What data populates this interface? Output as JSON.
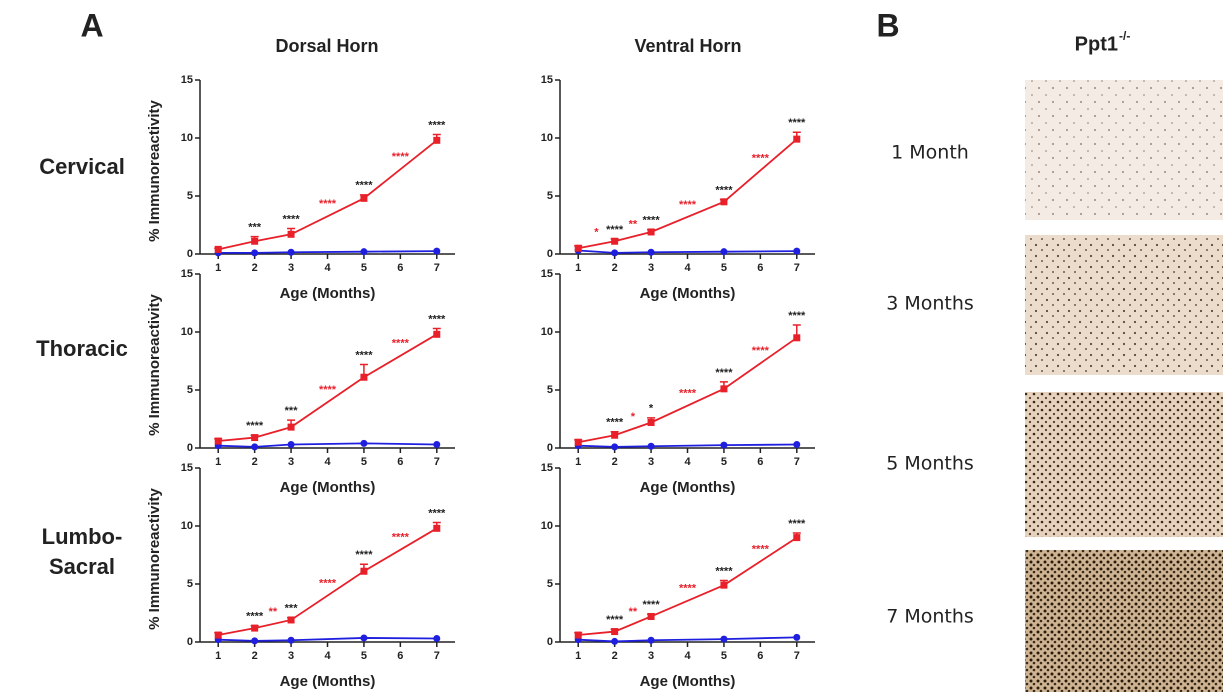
{
  "panel_labels": [
    "A",
    "B"
  ],
  "column_titles": [
    "Dorsal Horn",
    "Ventral Horn"
  ],
  "row_labels": [
    [
      "Cervical"
    ],
    [
      "Thoracic"
    ],
    [
      "Lumbo-",
      "Sacral"
    ]
  ],
  "image_panel": {
    "title": "Ppt1",
    "title_superscript": "-/-",
    "labels": [
      "1 Month",
      "3 Months",
      "5 Months",
      "7 Months"
    ]
  },
  "chart_data": [
    {
      "type": "line",
      "ylabel": "% Immunoreactivity",
      "xlabel": "Age (Months)",
      "x": [
        1,
        2,
        3,
        5,
        7
      ],
      "xlim": [
        0.5,
        7.5
      ],
      "xticks": [
        1,
        2,
        3,
        4,
        5,
        6,
        7
      ],
      "ylim": [
        0,
        15
      ],
      "yticks": [
        0,
        5,
        10,
        15
      ],
      "series": [
        {
          "color": "#e8202a",
          "marker": "square",
          "values": [
            0.4,
            1.1,
            1.7,
            4.8,
            9.8
          ],
          "errors": [
            0.1,
            0.4,
            0.5,
            0.3,
            0.5
          ]
        },
        {
          "color": "#1f1fe0",
          "marker": "circle",
          "values": [
            0.1,
            0.1,
            0.15,
            0.2,
            0.25
          ]
        }
      ],
      "annotations": [
        {
          "text": "***",
          "x": 2,
          "color": "#222222"
        },
        {
          "text": "****",
          "x": 3,
          "color": "#222222"
        },
        {
          "text": "****",
          "x": 5,
          "color": "#222222"
        },
        {
          "text": "****",
          "x": 7,
          "color": "#222222"
        },
        {
          "text": "****",
          "x": 4,
          "color": "#e8202a"
        },
        {
          "text": "****",
          "x": 6,
          "color": "#e8202a"
        }
      ]
    },
    {
      "type": "line",
      "xlabel": "Age (Months)",
      "x": [
        1,
        2,
        3,
        5,
        7
      ],
      "xlim": [
        0.5,
        7.5
      ],
      "xticks": [
        1,
        2,
        3,
        4,
        5,
        6,
        7
      ],
      "ylim": [
        0,
        15
      ],
      "yticks": [
        0,
        5,
        10,
        15
      ],
      "series": [
        {
          "color": "#e8202a",
          "marker": "square",
          "values": [
            0.5,
            1.1,
            1.9,
            4.5,
            9.9
          ],
          "errors": [
            0.2,
            0.2,
            0.2,
            0.2,
            0.6
          ]
        },
        {
          "color": "#1f1fe0",
          "marker": "circle",
          "values": [
            0.3,
            0.1,
            0.15,
            0.2,
            0.25
          ]
        }
      ],
      "annotations": [
        {
          "text": "****",
          "x": 2,
          "color": "#222222"
        },
        {
          "text": "****",
          "x": 3,
          "color": "#222222"
        },
        {
          "text": "****",
          "x": 5,
          "color": "#222222"
        },
        {
          "text": "****",
          "x": 7,
          "color": "#222222"
        },
        {
          "text": "*",
          "x": 1.5,
          "color": "#e8202a"
        },
        {
          "text": "**",
          "x": 2.5,
          "color": "#e8202a"
        },
        {
          "text": "****",
          "x": 4,
          "color": "#e8202a"
        },
        {
          "text": "****",
          "x": 6,
          "color": "#e8202a"
        }
      ]
    },
    {
      "type": "line",
      "ylabel": "% Immunoreactivity",
      "xlabel": "Age (Months)",
      "x": [
        1,
        2,
        3,
        5,
        7
      ],
      "xlim": [
        0.5,
        7.5
      ],
      "xticks": [
        1,
        2,
        3,
        4,
        5,
        6,
        7
      ],
      "ylim": [
        0,
        15
      ],
      "yticks": [
        0,
        5,
        10,
        15
      ],
      "series": [
        {
          "color": "#e8202a",
          "marker": "square",
          "values": [
            0.6,
            0.9,
            1.8,
            6.1,
            9.8
          ],
          "errors": [
            0.2,
            0.2,
            0.6,
            1.1,
            0.5
          ]
        },
        {
          "color": "#1f1fe0",
          "marker": "circle",
          "values": [
            0.2,
            0.1,
            0.3,
            0.4,
            0.3
          ]
        }
      ],
      "annotations": [
        {
          "text": "****",
          "x": 2,
          "color": "#222222"
        },
        {
          "text": "***",
          "x": 3,
          "color": "#222222"
        },
        {
          "text": "****",
          "x": 5,
          "color": "#222222"
        },
        {
          "text": "****",
          "x": 7,
          "color": "#222222"
        },
        {
          "text": "****",
          "x": 4,
          "color": "#e8202a"
        },
        {
          "text": "****",
          "x": 6,
          "color": "#e8202a"
        }
      ]
    },
    {
      "type": "line",
      "xlabel": "Age (Months)",
      "x": [
        1,
        2,
        3,
        5,
        7
      ],
      "xlim": [
        0.5,
        7.5
      ],
      "xticks": [
        1,
        2,
        3,
        4,
        5,
        6,
        7
      ],
      "ylim": [
        0,
        15
      ],
      "yticks": [
        0,
        5,
        10,
        15
      ],
      "series": [
        {
          "color": "#e8202a",
          "marker": "square",
          "values": [
            0.5,
            1.1,
            2.2,
            5.1,
            9.5
          ],
          "errors": [
            0.2,
            0.3,
            0.4,
            0.6,
            1.1
          ]
        },
        {
          "color": "#1f1fe0",
          "marker": "circle",
          "values": [
            0.2,
            0.1,
            0.15,
            0.25,
            0.3
          ]
        }
      ],
      "annotations": [
        {
          "text": "****",
          "x": 2,
          "color": "#222222"
        },
        {
          "text": "*",
          "x": 3,
          "color": "#222222"
        },
        {
          "text": "****",
          "x": 5,
          "color": "#222222"
        },
        {
          "text": "****",
          "x": 7,
          "color": "#222222"
        },
        {
          "text": "*",
          "x": 2.5,
          "color": "#e8202a"
        },
        {
          "text": "****",
          "x": 4,
          "color": "#e8202a"
        },
        {
          "text": "****",
          "x": 6,
          "color": "#e8202a"
        }
      ]
    },
    {
      "type": "line",
      "ylabel": "% Immunoreactivity",
      "xlabel": "Age (Months)",
      "x": [
        1,
        2,
        3,
        5,
        7
      ],
      "xlim": [
        0.5,
        7.5
      ],
      "xticks": [
        1,
        2,
        3,
        4,
        5,
        6,
        7
      ],
      "ylim": [
        0,
        15
      ],
      "yticks": [
        0,
        5,
        10,
        15
      ],
      "series": [
        {
          "color": "#e8202a",
          "marker": "square",
          "values": [
            0.6,
            1.2,
            1.9,
            6.1,
            9.8
          ],
          "errors": [
            0.2,
            0.2,
            0.2,
            0.6,
            0.5
          ]
        },
        {
          "color": "#1f1fe0",
          "marker": "circle",
          "values": [
            0.2,
            0.1,
            0.15,
            0.35,
            0.3
          ]
        }
      ],
      "annotations": [
        {
          "text": "****",
          "x": 2,
          "color": "#222222"
        },
        {
          "text": "***",
          "x": 3,
          "color": "#222222"
        },
        {
          "text": "****",
          "x": 5,
          "color": "#222222"
        },
        {
          "text": "****",
          "x": 7,
          "color": "#222222"
        },
        {
          "text": "**",
          "x": 2.5,
          "color": "#e8202a"
        },
        {
          "text": "****",
          "x": 4,
          "color": "#e8202a"
        },
        {
          "text": "****",
          "x": 6,
          "color": "#e8202a"
        }
      ]
    },
    {
      "type": "line",
      "xlabel": "Age (Months)",
      "x": [
        1,
        2,
        3,
        5,
        7
      ],
      "xlim": [
        0.5,
        7.5
      ],
      "xticks": [
        1,
        2,
        3,
        4,
        5,
        6,
        7
      ],
      "ylim": [
        0,
        15
      ],
      "yticks": [
        0,
        5,
        10,
        15
      ],
      "series": [
        {
          "color": "#e8202a",
          "marker": "square",
          "values": [
            0.6,
            0.9,
            2.2,
            4.9,
            9.0
          ],
          "errors": [
            0.2,
            0.2,
            0.2,
            0.4,
            0.4
          ]
        },
        {
          "color": "#1f1fe0",
          "marker": "circle",
          "values": [
            0.2,
            0.05,
            0.15,
            0.25,
            0.4
          ]
        }
      ],
      "annotations": [
        {
          "text": "****",
          "x": 2,
          "color": "#222222"
        },
        {
          "text": "****",
          "x": 3,
          "color": "#222222"
        },
        {
          "text": "****",
          "x": 5,
          "color": "#222222"
        },
        {
          "text": "****",
          "x": 7,
          "color": "#222222"
        },
        {
          "text": "**",
          "x": 2.5,
          "color": "#e8202a"
        },
        {
          "text": "****",
          "x": 4,
          "color": "#e8202a"
        },
        {
          "text": "****",
          "x": 6,
          "color": "#e8202a"
        }
      ]
    }
  ]
}
